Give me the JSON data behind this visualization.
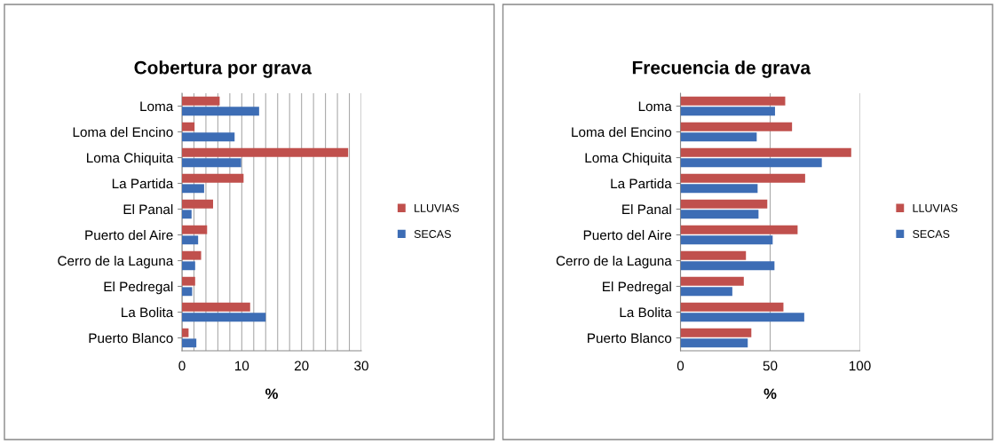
{
  "chart_data": [
    {
      "type": "bar",
      "orientation": "horizontal",
      "title": "Cobertura por grava",
      "xlabel": "%",
      "categories": [
        "Loma",
        "Loma del Encino",
        "Loma Chiquita",
        "La Partida",
        "El Panal",
        "Puerto del Aire",
        "Cerro de la Laguna",
        "El Pedregal",
        "La Bolita",
        "Puerto Blanco"
      ],
      "series": [
        {
          "name": "LLUVIAS",
          "color": "#c0504d",
          "values": [
            6.3,
            2.1,
            27.8,
            10.3,
            5.2,
            4.2,
            3.2,
            2.2,
            11.4,
            1.1
          ]
        },
        {
          "name": "SECAS",
          "color": "#3d6db5",
          "values": [
            12.9,
            8.8,
            9.9,
            3.7,
            1.6,
            2.7,
            2.2,
            1.7,
            14.0,
            2.4
          ]
        }
      ],
      "xlim": [
        0,
        30
      ],
      "xticks": [
        0,
        {
          "value": 2,
          "label": null
        },
        {
          "value": 4,
          "label": null
        },
        {
          "value": 6,
          "label": null
        },
        {
          "value": 8,
          "label": null
        },
        10,
        {
          "value": 12,
          "label": null
        },
        {
          "value": 14,
          "label": null
        },
        {
          "value": 16,
          "label": null
        },
        {
          "value": 18,
          "label": null
        },
        20,
        {
          "value": 22,
          "label": null
        },
        {
          "value": 24,
          "label": null
        },
        {
          "value": 26,
          "label": null
        },
        {
          "value": 28,
          "label": null
        },
        30
      ],
      "grid": "x",
      "legend": "right"
    },
    {
      "type": "bar",
      "orientation": "horizontal",
      "title": "Frecuencia de grava",
      "xlabel": "%",
      "categories": [
        "Loma",
        "Loma del Encino",
        "Loma Chiquita",
        "La Partida",
        "El Panal",
        "Puerto del Aire",
        "Cerro de la Laguna",
        "El Pedregal",
        "La Bolita",
        "Puerto Blanco"
      ],
      "series": [
        {
          "name": "LLUVIAS",
          "color": "#c0504d",
          "values": [
            58.4,
            62.2,
            95.2,
            69.5,
            48.4,
            65.3,
            36.5,
            35.3,
            57.4,
            39.5
          ]
        },
        {
          "name": "SECAS",
          "color": "#3d6db5",
          "values": [
            52.7,
            42.5,
            78.8,
            43.0,
            43.5,
            51.4,
            52.4,
            28.9,
            69.0,
            37.5
          ]
        }
      ],
      "xlim": [
        0,
        100
      ],
      "xticks": [
        0,
        50,
        100
      ],
      "grid": "x",
      "legend": "right"
    }
  ]
}
